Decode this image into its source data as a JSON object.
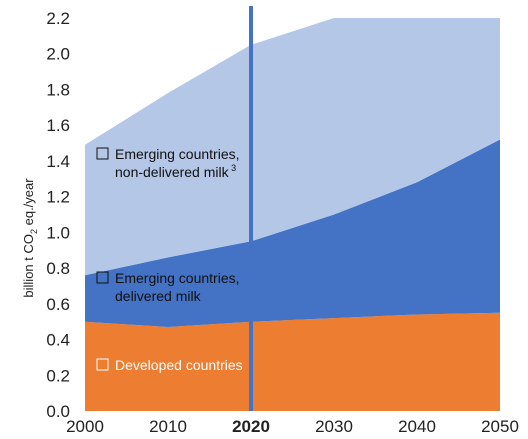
{
  "chart_data": {
    "type": "area",
    "stacked": true,
    "x": [
      2000,
      2010,
      2020,
      2030,
      2040,
      2050
    ],
    "series": [
      {
        "name": "Developed countries",
        "values": [
          0.5,
          0.47,
          0.5,
          0.52,
          0.54,
          0.55
        ],
        "color": "#ed7d31",
        "label_color": "#ffffff"
      },
      {
        "name": "Emerging countries, delivered milk",
        "values": [
          0.26,
          0.39,
          0.45,
          0.58,
          0.74,
          0.97
        ],
        "color": "#4472c4",
        "label_color": "#111111"
      },
      {
        "name": "Emerging countries, non-delivered milk",
        "footnote": "3",
        "values": [
          0.73,
          0.92,
          1.1,
          1.1,
          0.92,
          0.68
        ],
        "color": "#b4c7e7",
        "label_color": "#111111"
      }
    ],
    "ylabel": "billion t CO2 eq./year",
    "ylim": [
      0,
      2.2
    ],
    "yticks": [
      "0.0",
      "0.2",
      "0.4",
      "0.6",
      "0.8",
      "1.0",
      "1.2",
      "1.4",
      "1.6",
      "1.8",
      "2.0",
      "2.2"
    ],
    "xticks": [
      "2000",
      "2010",
      "2020",
      "2030",
      "2040",
      "2050"
    ],
    "highlight_x": 2020,
    "highlight_color": "#4472c4",
    "legend": "inline"
  }
}
